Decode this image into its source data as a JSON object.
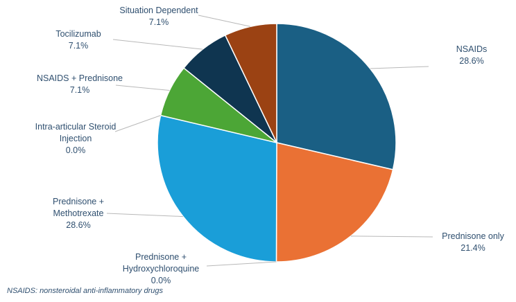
{
  "chart_data": {
    "type": "pie",
    "slices": [
      {
        "label_lines": [
          "NSAIDs"
        ],
        "value_label": "28.6%",
        "value": 28.6,
        "color": "#1a5f84"
      },
      {
        "label_lines": [
          "Prednisone only"
        ],
        "value_label": "21.4%",
        "value": 21.4,
        "color": "#ea7134"
      },
      {
        "label_lines": [
          "Prednisone +",
          "Hydroxychloroquine"
        ],
        "value_label": "0.0%",
        "value": 0.0,
        "color": "#9aa3a8"
      },
      {
        "label_lines": [
          "Prednisone +",
          "Methotrexate"
        ],
        "value_label": "28.6%",
        "value": 28.6,
        "color": "#1a9ed8"
      },
      {
        "label_lines": [
          "Intra-articular Steroid",
          "Injection"
        ],
        "value_label": "0.0%",
        "value": 0.0,
        "color": "#9aa3a8"
      },
      {
        "label_lines": [
          "NSAIDS + Prednisone"
        ],
        "value_label": "7.1%",
        "value": 7.1,
        "color": "#4ca636"
      },
      {
        "label_lines": [
          "Tocilizumab"
        ],
        "value_label": "7.1%",
        "value": 7.1,
        "color": "#0f3550"
      },
      {
        "label_lines": [
          "Situation Dependent"
        ],
        "value_label": "7.1%",
        "value": 7.1,
        "color": "#9b4213"
      }
    ]
  },
  "footnote": "NSAIDS: nonsteroidal anti-inflammatory drugs"
}
